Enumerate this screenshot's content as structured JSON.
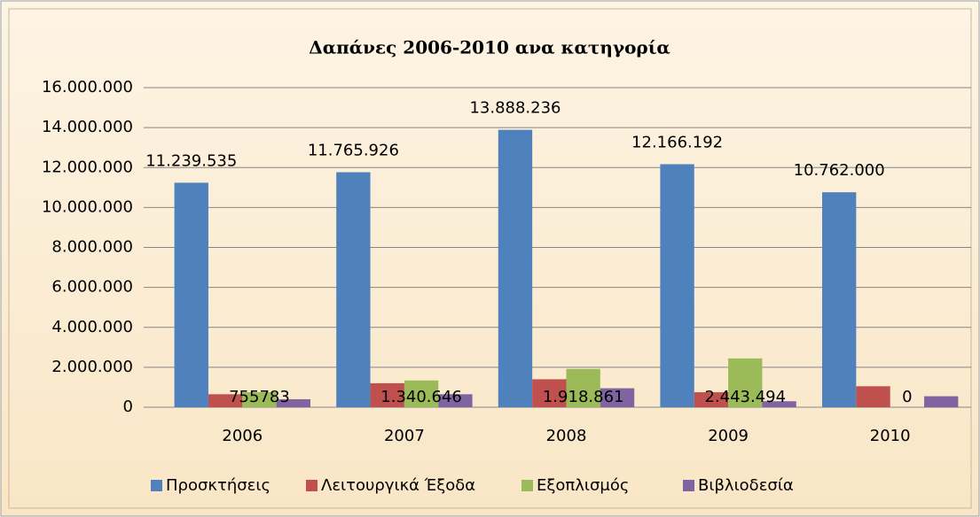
{
  "chart_data": {
    "type": "bar",
    "title": "Δαπάνες 2006-2010 ανα κατηγορία",
    "categories": [
      "2006",
      "2007",
      "2008",
      "2009",
      "2010"
    ],
    "series": [
      {
        "name": "Προσκτήσεις",
        "color": "#4f81bd",
        "values": [
          11239535,
          11765926,
          13888236,
          12166192,
          10762000
        ],
        "value_labels": [
          "11.239.535",
          "11.765.926",
          "13.888.236",
          "12.166.192",
          "10.762.000"
        ]
      },
      {
        "name": "Λειτουργικά Έξοδα",
        "color": "#c0504d",
        "values": [
          650000,
          1200000,
          1400000,
          750000,
          1050000
        ]
      },
      {
        "name": "Εξοπλισμός",
        "color": "#9bbb59",
        "values": [
          755783,
          1340646,
          1918861,
          2443494,
          0
        ],
        "value_labels": [
          "755783",
          "1.340.646",
          "1.918.861",
          "2.443.494",
          "0"
        ]
      },
      {
        "name": "Βιβλιοδεσία",
        "color": "#8064a2",
        "values": [
          400000,
          650000,
          950000,
          300000,
          550000
        ]
      }
    ],
    "ylim": [
      0,
      16000000
    ],
    "yticks": [
      0,
      {
        "value": 2000000,
        "label": "2.000.000"
      },
      {
        "value": 4000000,
        "label": "4.000.000"
      },
      {
        "value": 6000000,
        "label": "6.000.000"
      },
      {
        "value": 8000000,
        "label": "8.000.000"
      },
      {
        "value": 10000000,
        "label": "10.000.000"
      },
      {
        "value": 12000000,
        "label": "12.000.000"
      },
      {
        "value": 14000000,
        "label": "14.000.000"
      },
      {
        "value": 16000000,
        "label": "16.000.000"
      }
    ],
    "grid": true,
    "legend": "bottom"
  }
}
